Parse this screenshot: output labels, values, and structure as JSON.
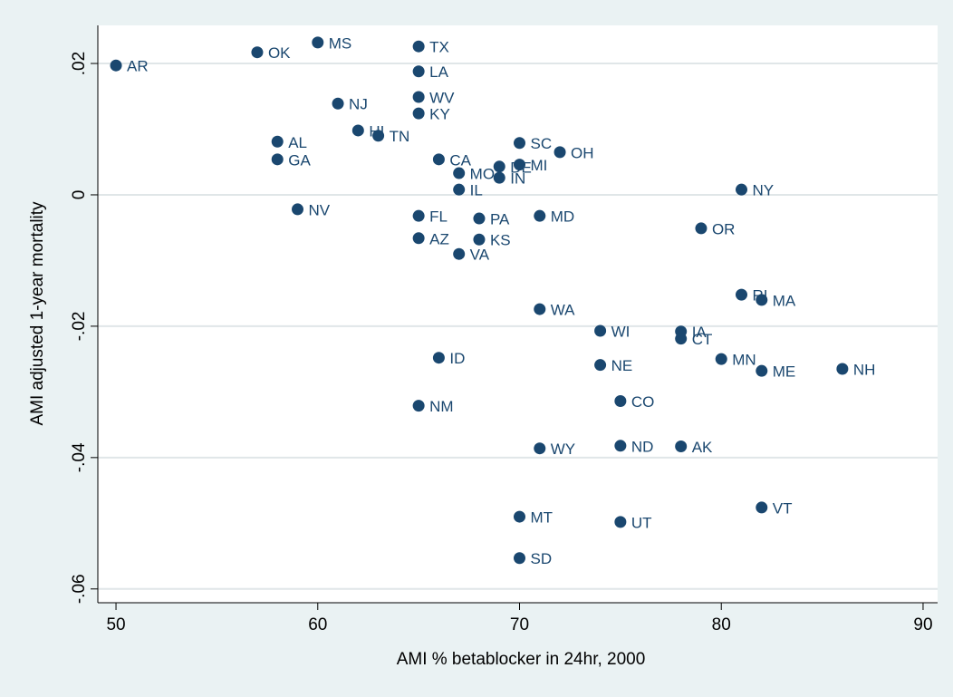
{
  "chart_data": {
    "type": "scatter",
    "x_label": "AMI % betablocker in 24hr, 2000",
    "y_label": "AMI adjusted 1-year mortality",
    "xlim": [
      49.1,
      90.72
    ],
    "ylim": [
      -0.0621,
      0.0258
    ],
    "xticks": [
      50,
      60,
      70,
      80,
      90
    ],
    "yticks": [
      {
        "value": 0.02,
        "label": ".02"
      },
      0,
      {
        "value": -0.02,
        "label": "-.02"
      },
      {
        "value": -0.04,
        "label": "-.04"
      },
      {
        "value": -0.06,
        "label": "-.06"
      }
    ],
    "grid": true,
    "color": "#1a476f",
    "point_labels": [
      "AR",
      "OK",
      "MS",
      "TX",
      "LA",
      "WV",
      "KY",
      "NJ",
      "HI",
      "TN",
      "AL",
      "GA",
      "CA",
      "SC",
      "OH",
      "MO",
      "DE",
      "MI",
      "IN",
      "IL",
      "NY",
      "NV",
      "FL",
      "PA",
      "MD",
      "OR",
      "AZ",
      "KS",
      "VA",
      "RI",
      "MA",
      "WA",
      "WI",
      "IA",
      "CT",
      "MN",
      "ID",
      "NE",
      "ME",
      "NH",
      "CO",
      "NM",
      "WY",
      "ND",
      "AK",
      "VT",
      "MT",
      "UT",
      "SD"
    ],
    "x": [
      50,
      57,
      60,
      65,
      65,
      65,
      65,
      61,
      62,
      63,
      58,
      58,
      66,
      70,
      72,
      67,
      69,
      70,
      69,
      67,
      81,
      59,
      65,
      68,
      71,
      79,
      65,
      68,
      67,
      81,
      82,
      71,
      74,
      78,
      78,
      80,
      66,
      74,
      82,
      86,
      75,
      65,
      71,
      75,
      78,
      82,
      70,
      75,
      70
    ],
    "values": [
      0.0197,
      0.0217,
      0.0232,
      0.0226,
      0.0188,
      0.0149,
      0.0124,
      0.0139,
      0.0098,
      0.009,
      0.0081,
      0.0054,
      0.0054,
      0.0079,
      0.0065,
      0.0033,
      0.0043,
      0.0046,
      0.0026,
      0.0008,
      0.0008,
      -0.0022,
      -0.0032,
      -0.0036,
      -0.0032,
      -0.0051,
      -0.0066,
      -0.0068,
      -0.009,
      -0.0152,
      -0.016,
      -0.0174,
      -0.0207,
      -0.0208,
      -0.0219,
      -0.025,
      -0.0248,
      -0.0259,
      -0.0268,
      -0.0265,
      -0.0314,
      -0.0321,
      -0.0386,
      -0.0382,
      -0.0383,
      -0.0476,
      -0.049,
      -0.0498,
      -0.0553
    ]
  }
}
